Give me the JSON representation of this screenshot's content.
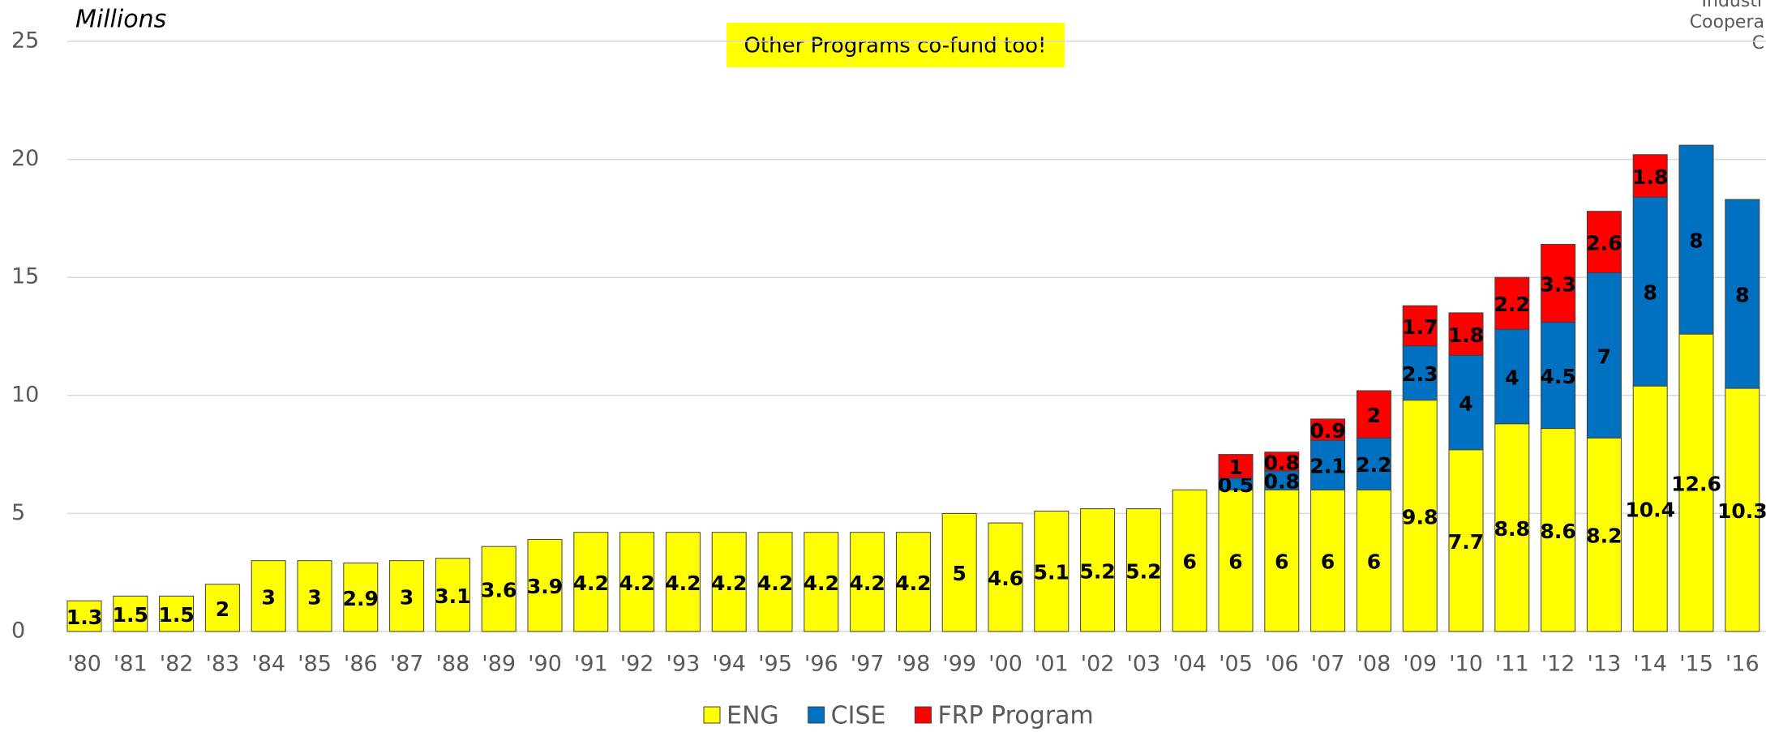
{
  "chart_data": {
    "type": "stacked_bar",
    "y_label": "Millions",
    "annotation": "Other Programs co-fund too!",
    "corner_text": [
      "Industr",
      "Coopera",
      "C"
    ],
    "categories": [
      "'80",
      "'81",
      "'82",
      "'83",
      "'84",
      "'85",
      "'86",
      "'87",
      "'88",
      "'89",
      "'90",
      "'91",
      "'92",
      "'93",
      "'94",
      "'95",
      "'96",
      "'97",
      "'98",
      "'99",
      "'00",
      "'01",
      "'02",
      "'03",
      "'04",
      "'05",
      "'06",
      "'07",
      "'08",
      "'09",
      "'10",
      "'11",
      "'12",
      "'13",
      "'14",
      "'15",
      "'16"
    ],
    "series": [
      {
        "name": "ENG",
        "color": "#ffff00",
        "values": [
          1.3,
          1.5,
          1.5,
          2,
          3,
          3,
          2.9,
          3,
          3.1,
          3.6,
          3.9,
          4.2,
          4.2,
          4.2,
          4.2,
          4.2,
          4.2,
          4.2,
          4.2,
          5,
          4.6,
          5.1,
          5.2,
          5.2,
          6,
          6,
          6,
          6,
          6,
          9.8,
          7.7,
          8.8,
          8.6,
          8.2,
          10.4,
          12.6,
          10.3
        ]
      },
      {
        "name": "CISE",
        "color": "#0070c0",
        "values": [
          null,
          null,
          null,
          null,
          null,
          null,
          null,
          null,
          null,
          null,
          null,
          null,
          null,
          null,
          null,
          null,
          null,
          null,
          null,
          null,
          null,
          null,
          null,
          null,
          null,
          0.5,
          0.8,
          2.1,
          2.2,
          2.3,
          4,
          4,
          4.5,
          7,
          8,
          8,
          8
        ]
      },
      {
        "name": "FRP Program",
        "color": "#ff0000",
        "values": [
          null,
          null,
          null,
          null,
          null,
          null,
          null,
          null,
          null,
          null,
          null,
          null,
          null,
          null,
          null,
          null,
          null,
          null,
          null,
          null,
          null,
          null,
          null,
          null,
          null,
          1,
          0.8,
          0.9,
          2,
          1.7,
          1.8,
          2.2,
          3.3,
          2.6,
          1.8,
          null,
          null
        ]
      }
    ],
    "ylim": [
      0,
      25
    ],
    "yticks": [
      0,
      5,
      10,
      15,
      20,
      25
    ],
    "grid": true
  }
}
